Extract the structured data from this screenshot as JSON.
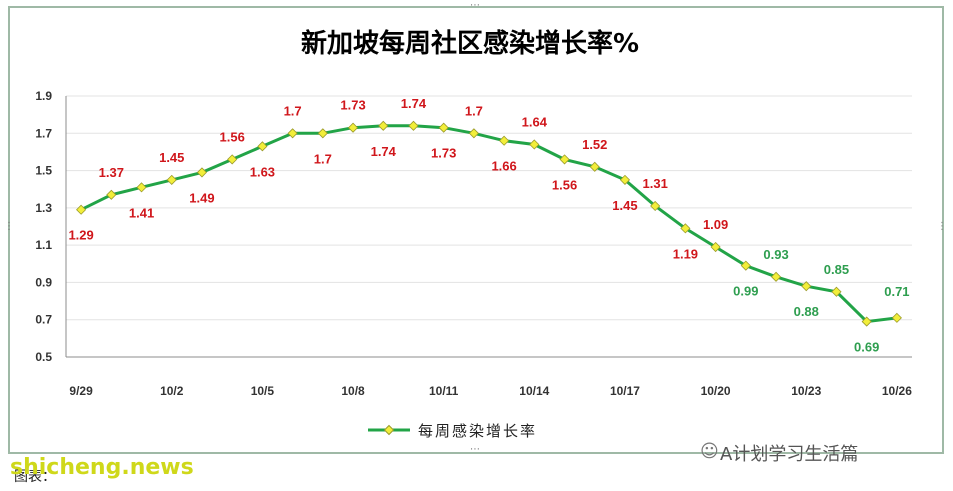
{
  "page": {
    "watermark": "A计划学习生活篇",
    "site": "shicheng.news",
    "source": "图表："
  },
  "chart_data": {
    "type": "line",
    "title": "新加坡每周社区感染增长率%",
    "xlabel": "",
    "ylabel": "",
    "ylim": [
      0.5,
      1.9
    ],
    "yticks": [
      "0.5",
      "0.7",
      "0.9",
      "1.1",
      "1.3",
      "1.5",
      "1.7",
      "1.9"
    ],
    "xtick_labels": [
      "9/29",
      "10/2",
      "10/5",
      "10/8",
      "10/11",
      "10/14",
      "10/17",
      "10/20",
      "10/23",
      "10/26"
    ],
    "x": [
      "9/29",
      "9/30",
      "10/1",
      "10/2",
      "10/3",
      "10/4",
      "10/5",
      "10/6",
      "10/7",
      "10/8",
      "10/9",
      "10/10",
      "10/11",
      "10/12",
      "10/13",
      "10/14",
      "10/15",
      "10/16",
      "10/17",
      "10/18",
      "10/19",
      "10/20",
      "10/21",
      "10/22",
      "10/23",
      "10/24",
      "10/25",
      "10/26"
    ],
    "series": [
      {
        "name": "每周感染增长率",
        "values": [
          1.29,
          1.37,
          1.41,
          1.45,
          1.49,
          1.56,
          1.63,
          1.7,
          1.7,
          1.73,
          1.74,
          1.74,
          1.73,
          1.7,
          1.66,
          1.64,
          1.56,
          1.52,
          1.45,
          1.31,
          1.19,
          1.09,
          0.99,
          0.93,
          0.88,
          0.85,
          0.69,
          0.71
        ],
        "data_labels": [
          "1.29",
          "1.37",
          "1.41",
          "1.45",
          "1.49",
          "1.56",
          "1.63",
          "1.7",
          "1.7",
          "1.73",
          "1.74",
          "1.74",
          "1.73",
          "1.7",
          "1.66",
          "1.64",
          "1.56",
          "1.52",
          "1.45",
          "1.31",
          "1.19",
          "1.09",
          "0.99",
          "0.93",
          "0.88",
          "0.85",
          "0.69",
          "0.71"
        ]
      }
    ],
    "label_colors": {
      "high": "#d0161b",
      "low": "#2e9e4f"
    },
    "line_color": "#22a447",
    "marker_color": "#f2ee3a",
    "grid": true,
    "legend": "bottom"
  }
}
